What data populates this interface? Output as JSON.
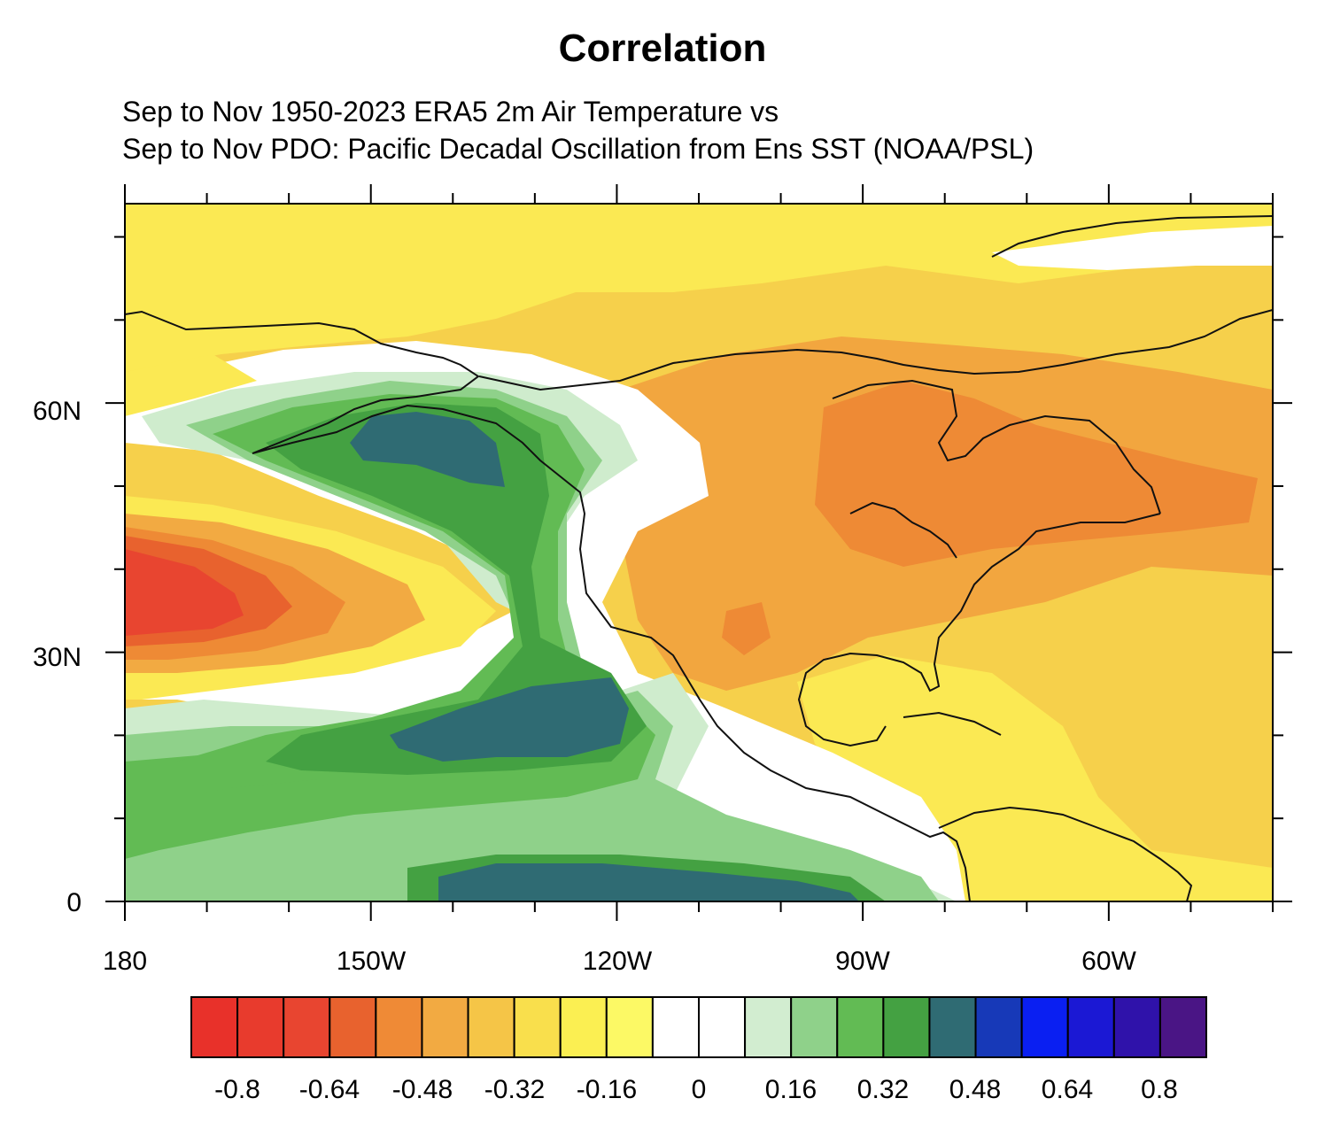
{
  "figure": {
    "title": "Correlation",
    "subtitle_line1": "Sep to Nov 1950-2023 ERA5 2m Air Temperature vs",
    "subtitle_line2": "Sep to Nov PDO: Pacific Decadal Oscillation from Ens SST (NOAA/PSL)"
  },
  "map": {
    "lon_range": [
      -180,
      -40
    ],
    "lat_range": [
      0,
      84
    ],
    "x_ticks": [
      "180",
      "150W",
      "120W",
      "90W",
      "60W"
    ],
    "y_ticks": [
      "0",
      "30N",
      "60N"
    ]
  },
  "colorbar": {
    "colors": [
      "#e8312a",
      "#e83b2d",
      "#e84530",
      "#e8622e",
      "#ef8a36",
      "#f2aa42",
      "#f5c547",
      "#f9df4c",
      "#fbef52",
      "#fcf965",
      "#ffffff",
      "#ffffff",
      "#d2edd0",
      "#8fd18a",
      "#62bb54",
      "#44a142",
      "#2f6b73",
      "#1739b8",
      "#0a1ff2",
      "#1b18d4",
      "#2f12aa",
      "#4a1585"
    ],
    "labels": [
      "-0.8",
      "-0.64",
      "-0.48",
      "-0.32",
      "-0.16",
      "0",
      "0.16",
      "0.32",
      "0.48",
      "0.64",
      "0.8"
    ]
  }
}
